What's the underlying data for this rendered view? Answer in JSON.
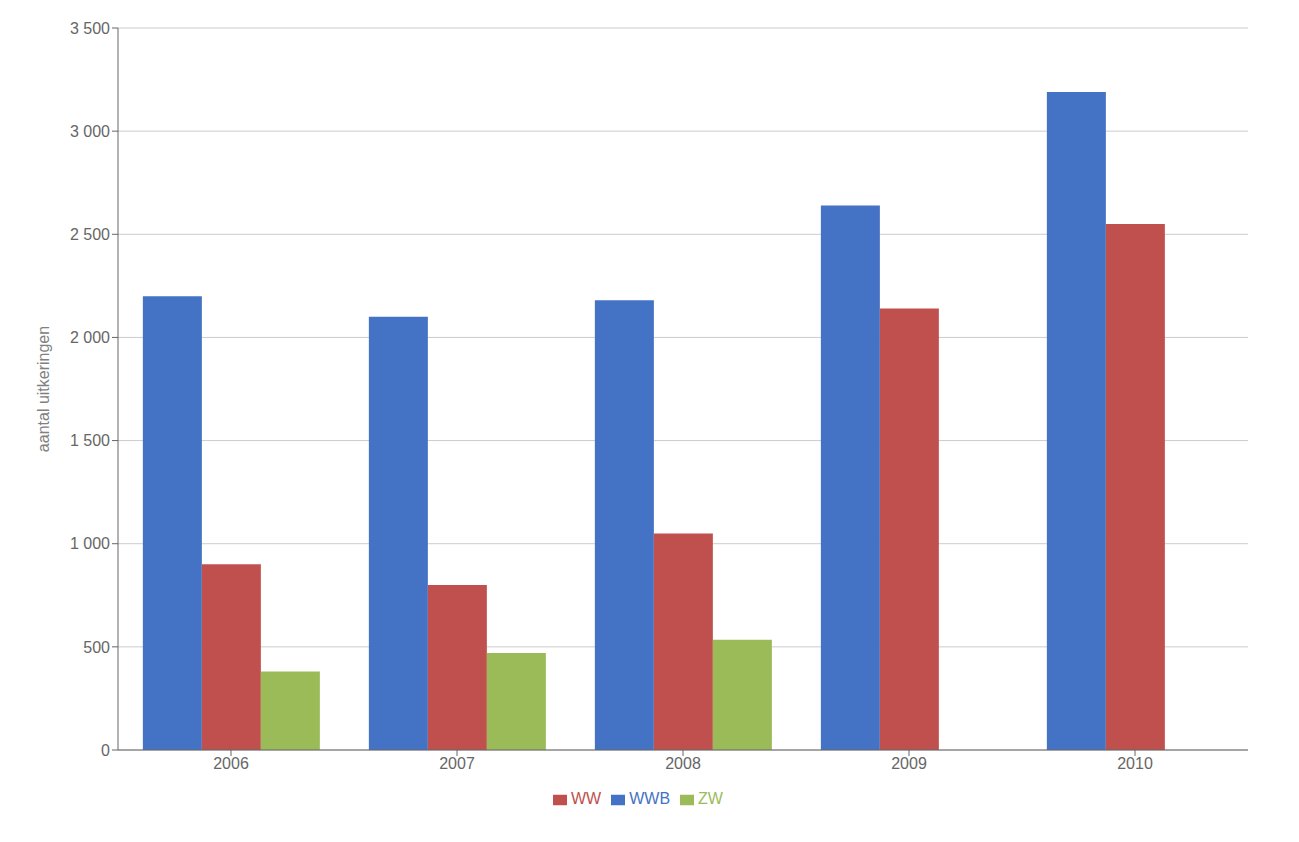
{
  "chart_data": {
    "type": "bar",
    "categories": [
      "2006",
      "2007",
      "2008",
      "2009",
      "2010"
    ],
    "series": [
      {
        "name": "WWB",
        "color": "#4472C4",
        "values": [
          2200,
          2100,
          2180,
          2640,
          3190
        ]
      },
      {
        "name": "WW",
        "color": "#C0504D",
        "values": [
          900,
          800,
          1050,
          2140,
          2550
        ]
      },
      {
        "name": "ZW",
        "color": "#9BBB59",
        "values": [
          380,
          470,
          535,
          0,
          0
        ]
      }
    ],
    "ylabel": "aantal uitkeringen",
    "ylim": [
      0,
      3500
    ],
    "yticks": [
      0,
      500,
      {
        "value": 1000,
        "label": "1 000"
      },
      {
        "value": 1500,
        "label": "1 500"
      },
      {
        "value": 2000,
        "label": "2 000"
      },
      {
        "value": 2500,
        "label": "2 500"
      },
      {
        "value": 3000,
        "label": "3 000"
      },
      {
        "value": 3500,
        "label": "3 500"
      }
    ],
    "grid": true,
    "legend": "bottom"
  }
}
